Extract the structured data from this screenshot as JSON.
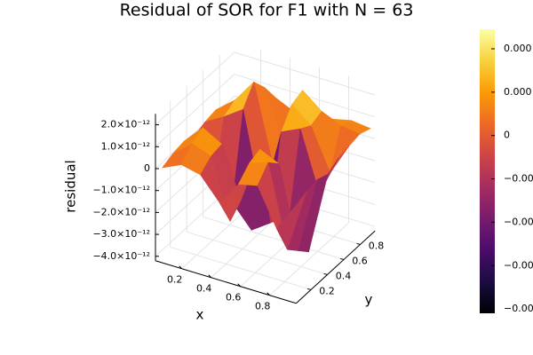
{
  "chart_data": {
    "type": "surface",
    "title": "Residual of SOR for F1 with N = 63",
    "x_label": "x",
    "y_label": "y",
    "z_label": "residual",
    "x": [
      0.05,
      0.18,
      0.31,
      0.44,
      0.57,
      0.7,
      0.83,
      0.96
    ],
    "y": [
      0.05,
      0.18,
      0.31,
      0.44,
      0.57,
      0.7,
      0.83,
      0.96
    ],
    "z": [
      [
        0,
        4e-13,
        2e-13,
        -8e-13,
        3e-13,
        5e-13,
        -1.2e-12,
        1e-13
      ],
      [
        2e-13,
        9e-13,
        6e-13,
        -2.1e-12,
        8e-13,
        1.1e-12,
        -2.6e-12,
        3e-13
      ],
      [
        3e-13,
        1.2e-12,
        7e-13,
        -1.6e-12,
        1e-12,
        6e-13,
        -3.1e-12,
        4e-13
      ],
      [
        1e-13,
        -1.9e-12,
        -2.4e-12,
        -3.4e-12,
        -2.8e-12,
        -2.2e-12,
        -3.6e-12,
        2e-13
      ],
      [
        3e-13,
        8e-13,
        1.4e-12,
        -2.7e-12,
        9e-13,
        1.3e-12,
        -1.4e-12,
        5e-13
      ],
      [
        4e-13,
        1.1e-12,
        2.2e-12,
        -1.3e-12,
        1.7e-12,
        1e-12,
        -9e-13,
        6e-13
      ],
      [
        2e-13,
        7e-13,
        1.5e-12,
        -6e-13,
        1.9e-12,
        1.2e-12,
        8e-13,
        7e-13
      ],
      [
        0,
        3e-13,
        6e-13,
        2e-13,
        5e-13,
        4e-13,
        6e-13,
        5e-13
      ]
    ],
    "xlim": [
      0.02,
      0.98
    ],
    "ylim": [
      0.02,
      0.98
    ],
    "zlim": [
      -4.2e-12,
      2.5e-12
    ],
    "xticks": [
      0.2,
      0.4,
      0.6,
      0.8
    ],
    "yticks": [
      0.2,
      0.4,
      0.6,
      0.8
    ],
    "zticks": [
      {
        "value": 2e-12,
        "label": "2.0×10⁻¹²"
      },
      {
        "value": 1e-12,
        "label": "1.0×10⁻¹²"
      },
      0,
      {
        "value": -1e-12,
        "label": "−1.0×10⁻¹²"
      },
      {
        "value": -2e-12,
        "label": "−2.0×10⁻¹²"
      },
      {
        "value": -3e-12,
        "label": "−3.0×10⁻¹²"
      },
      {
        "value": -4e-12,
        "label": "−4.0×10⁻¹²"
      }
    ],
    "clim": [
      -4.1e-12,
      2.45e-12
    ],
    "cticks": [
      {
        "value": 2e-12,
        "label": "0.000"
      },
      {
        "value": 1e-12,
        "label": "0.000"
      },
      0,
      {
        "value": -1e-12,
        "label": "−0.00"
      },
      {
        "value": -2e-12,
        "label": "−0.00"
      },
      {
        "value": -3e-12,
        "label": "−0.00"
      },
      {
        "value": -4e-12,
        "label": "−0.00"
      }
    ],
    "colormap": [
      "#000004",
      "#1b0c41",
      "#4a0c6b",
      "#781c6d",
      "#a52c60",
      "#cf4446",
      "#ed6925",
      "#fb9b06",
      "#f7d13d",
      "#fcffa4"
    ],
    "grid": true
  }
}
